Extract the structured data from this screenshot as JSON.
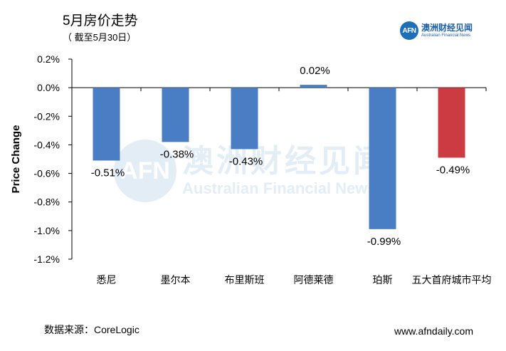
{
  "title": "5月房价走势",
  "subtitle": "（ 截至5月30日）",
  "logo": {
    "badge": "AFN",
    "name_cn": "澳洲财经见闻",
    "name_en": "Australian Financial News"
  },
  "watermark": {
    "badge": "AFN",
    "cn": "澳洲财经见闻",
    "en": "Australian Financial News"
  },
  "source": "数据来源：CoreLogic",
  "website": "www.afndaily.com",
  "colors": {
    "bar": "#4a7ec4",
    "highlight": "#cc3a42",
    "brand": "#1d6fb8"
  },
  "chart_data": {
    "type": "bar",
    "ylabel": "Price Change",
    "xlabel": "",
    "ylim": [
      -1.2,
      0.2
    ],
    "yticks": [
      "0.2%",
      "0.0%",
      "-0.2%",
      "-0.4%",
      "-0.6%",
      "-0.8%",
      "-1.0%",
      "-1.2%"
    ],
    "ytick_values": [
      0.2,
      0.0,
      -0.2,
      -0.4,
      -0.6,
      -0.8,
      -1.0,
      -1.2
    ],
    "categories": [
      "悉尼",
      "墨尔本",
      "布里斯班",
      "阿德莱德",
      "珀斯",
      "五大首府城市平均"
    ],
    "values": [
      -0.51,
      -0.38,
      -0.43,
      0.02,
      -0.99,
      -0.49
    ],
    "data_labels": [
      "-0.51%",
      "-0.38%",
      "-0.43%",
      "0.02%",
      "-0.99%",
      "-0.49%"
    ],
    "highlight_index": 5,
    "grid": false,
    "legend": "none"
  }
}
